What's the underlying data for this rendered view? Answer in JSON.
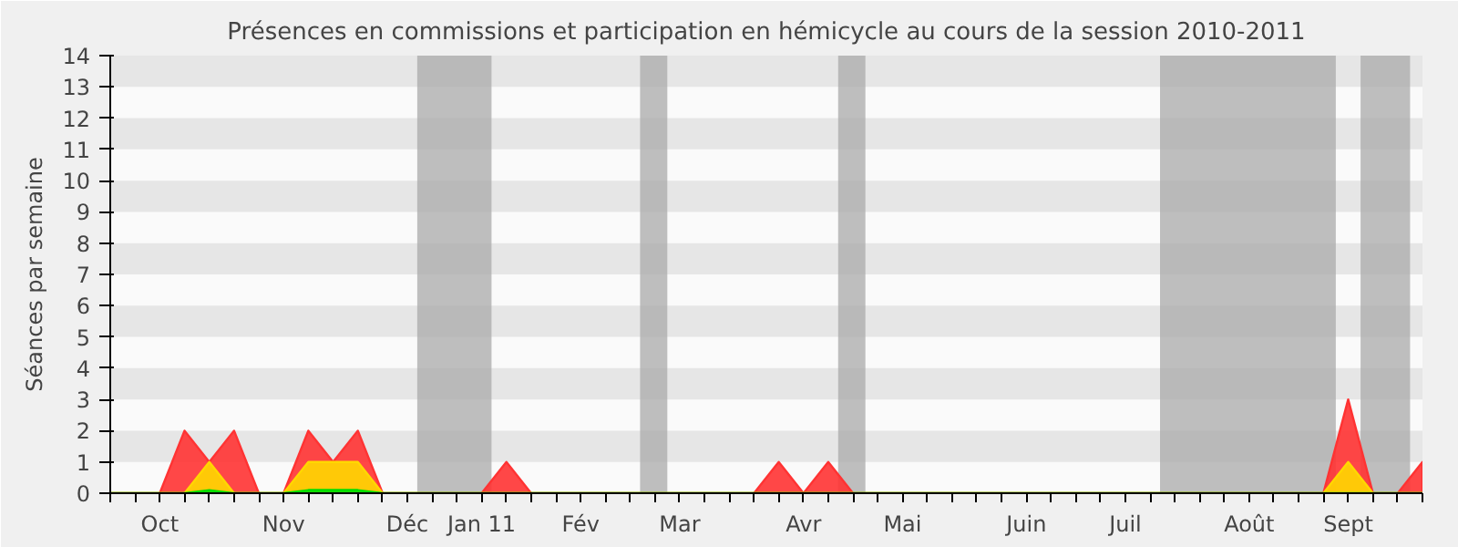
{
  "chart_data": {
    "type": "area",
    "title": "Présences en commissions et participation en hémicycle au cours de la session 2010-2011",
    "ylabel": "Séances par semaine",
    "categories": [
      null,
      null,
      "Oct",
      null,
      null,
      null,
      null,
      "Nov",
      null,
      null,
      null,
      null,
      "Déc",
      null,
      null,
      "Jan 11",
      null,
      null,
      null,
      "Fév",
      null,
      null,
      null,
      "Mar",
      null,
      null,
      null,
      null,
      "Avr",
      null,
      null,
      null,
      "Mai",
      null,
      null,
      null,
      null,
      "Juin",
      null,
      null,
      null,
      "Juil",
      null,
      null,
      null,
      null,
      "Août",
      null,
      null,
      null,
      "Sept",
      null,
      null,
      null
    ],
    "series": [
      {
        "color": "#ff3333",
        "values": [
          0,
          0,
          0,
          2,
          1,
          2,
          0,
          0,
          2,
          1,
          2,
          0,
          0,
          0,
          0,
          0,
          1,
          0,
          0,
          0,
          0,
          0,
          0,
          0,
          0,
          0,
          0,
          1,
          0,
          1,
          0,
          0,
          0,
          0,
          0,
          0,
          0,
          0,
          0,
          0,
          0,
          0,
          0,
          0,
          0,
          0,
          0,
          0,
          0,
          0,
          3,
          0,
          0,
          1
        ]
      },
      {
        "color": "#ffd700",
        "values": [
          0,
          0,
          0,
          0,
          1,
          0,
          0,
          0,
          1,
          1,
          1,
          0,
          0,
          0,
          0,
          0,
          0,
          0,
          0,
          0,
          0,
          0,
          0,
          0,
          0,
          0,
          0,
          0,
          0,
          0,
          0,
          0,
          0,
          0,
          0,
          0,
          0,
          0,
          0,
          0,
          0,
          0,
          0,
          0,
          0,
          0,
          0,
          0,
          0,
          0,
          1,
          0,
          0,
          0
        ]
      },
      {
        "color": "#00dd00",
        "values": [
          0,
          0,
          0,
          0,
          0.1,
          0,
          0,
          0,
          0.1,
          0.1,
          0.1,
          0,
          0,
          0,
          0,
          0,
          0,
          0,
          0,
          0,
          0,
          0,
          0,
          0,
          0,
          0,
          0,
          0,
          0,
          0,
          0,
          0,
          0,
          0,
          0,
          0,
          0,
          0,
          0,
          0,
          0,
          0,
          0,
          0,
          0,
          0,
          0,
          0,
          0,
          0,
          0,
          0,
          0,
          0
        ]
      }
    ],
    "ylim": [
      0,
      14
    ],
    "yticks": [
      0,
      1,
      2,
      3,
      4,
      5,
      6,
      7,
      8,
      9,
      10,
      11,
      12,
      13,
      14
    ],
    "grid": false
  }
}
